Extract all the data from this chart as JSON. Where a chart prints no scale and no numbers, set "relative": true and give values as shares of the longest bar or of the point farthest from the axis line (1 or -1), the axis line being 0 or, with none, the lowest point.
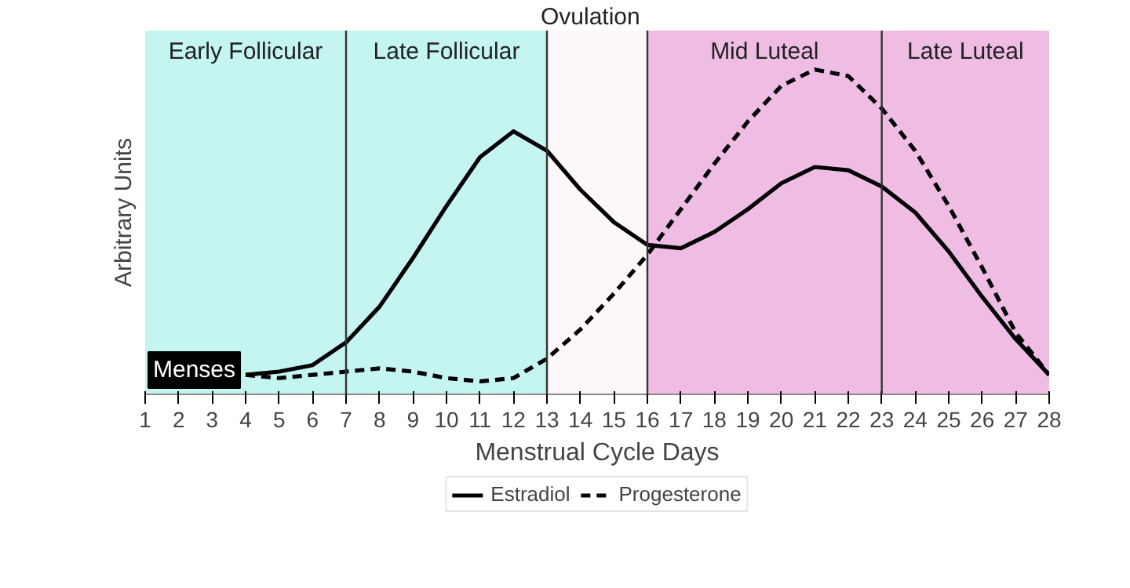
{
  "chart_data": {
    "type": "line",
    "relative": true,
    "xlabel": "Menstrual Cycle Days",
    "ylabel": "Arbitrary Units",
    "xlim": [
      1,
      28
    ],
    "xticks": [
      1,
      2,
      3,
      4,
      5,
      6,
      7,
      8,
      9,
      10,
      11,
      12,
      13,
      14,
      15,
      16,
      17,
      18,
      19,
      20,
      21,
      22,
      23,
      24,
      25,
      26,
      27,
      28
    ],
    "x": [
      4,
      5,
      6,
      7,
      8,
      9,
      10,
      11,
      12,
      13,
      14,
      15,
      16,
      17,
      18,
      19,
      20,
      21,
      22,
      23,
      24,
      25,
      26,
      27,
      28
    ],
    "series": [
      {
        "name": "Estradiol",
        "color": "#000000",
        "line_style": "solid",
        "values": [
          0.06,
          0.07,
          0.09,
          0.16,
          0.27,
          0.42,
          0.58,
          0.73,
          0.81,
          0.75,
          0.63,
          0.53,
          0.46,
          0.45,
          0.5,
          0.57,
          0.65,
          0.7,
          0.69,
          0.64,
          0.56,
          0.44,
          0.3,
          0.17,
          0.06
        ]
      },
      {
        "name": "Progesterone",
        "color": "#000000",
        "line_style": "dashed",
        "values": [
          0.06,
          0.05,
          0.06,
          0.07,
          0.08,
          0.07,
          0.05,
          0.04,
          0.05,
          0.11,
          0.2,
          0.31,
          0.43,
          0.57,
          0.71,
          0.84,
          0.95,
          1.0,
          0.98,
          0.88,
          0.75,
          0.58,
          0.39,
          0.19,
          0.06
        ]
      }
    ],
    "bands": [
      {
        "axis": "x",
        "from": 1,
        "to": 7,
        "label": "Early Follicular",
        "color": "#c4f5f0"
      },
      {
        "axis": "x",
        "from": 7,
        "to": 13,
        "label": "Late Follicular",
        "color": "#c4f5f0"
      },
      {
        "axis": "x",
        "from": 13,
        "to": 16,
        "label": "Ovulation",
        "color": "#fbf7fa"
      },
      {
        "axis": "x",
        "from": 16,
        "to": 23,
        "label": "Mid Luteal",
        "color": "#efbde4"
      },
      {
        "axis": "x",
        "from": 23,
        "to": 28,
        "label": "Late Luteal",
        "color": "#efbde4"
      }
    ],
    "ref_lines": [
      {
        "axis": "x",
        "value": 7
      },
      {
        "axis": "x",
        "value": 13
      },
      {
        "axis": "x",
        "value": 16
      },
      {
        "axis": "x",
        "value": 23
      }
    ],
    "annotations": [
      "Menses"
    ],
    "legend": "bottom"
  }
}
